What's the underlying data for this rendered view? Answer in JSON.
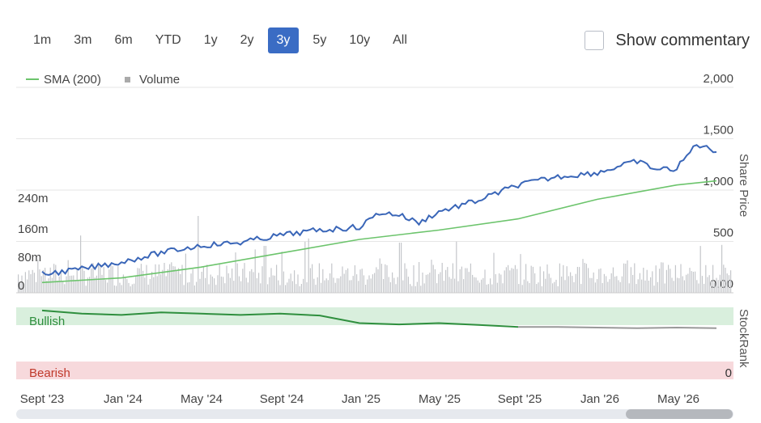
{
  "range_buttons": [
    "1m",
    "3m",
    "6m",
    "YTD",
    "1y",
    "2y",
    "3y",
    "5y",
    "10y",
    "All"
  ],
  "active_range": "3y",
  "commentary": {
    "label": "Show commentary",
    "checked": false
  },
  "legend": {
    "sma_label": "SMA (200)",
    "volume_label": "Volume"
  },
  "colors": {
    "price": "#3a66b8",
    "sma": "#6cc46c",
    "volume": "#c4c6ca",
    "bullish_line": "#2f8f3e",
    "neutral_line": "#999999",
    "bullish_band": "#d9efdd",
    "bearish_band": "#f7d9dc",
    "bearish_text": "#c0392b",
    "active_button": "#3a6cc4"
  },
  "chart_data": {
    "type": "line",
    "x_axis": {
      "ticks": [
        "Sept '23",
        "Jan '24",
        "May '24",
        "Sept '24",
        "Jan '25",
        "May '25",
        "Sept '25",
        "Jan '26",
        "May '26"
      ]
    },
    "price_axis": {
      "label": "Share Price",
      "ticks": [
        "2,000",
        "1,500",
        "1,000",
        "500",
        "0.00"
      ],
      "ylim": [
        0,
        2000
      ]
    },
    "volume_axis": {
      "ticks": [
        "240m",
        "160m",
        "80m",
        "0"
      ],
      "ylim": [
        0,
        360
      ]
    },
    "series": [
      {
        "name": "SMA (200)",
        "x": [
          "Sept '23",
          "Jan '24",
          "May '24",
          "Sept '24",
          "Jan '25",
          "May '25",
          "Sept '25",
          "Jan '26",
          "May '26",
          "Jul '26"
        ],
        "values": [
          100,
          145,
          250,
          385,
          520,
          610,
          720,
          910,
          1050,
          1090
        ]
      },
      {
        "name": "Share Price",
        "x": [
          "Sept '23",
          "Nov '23",
          "Jan '24",
          "Mar '24",
          "May '24",
          "Jul '24",
          "Sept '24",
          "Nov '24",
          "Jan '25",
          "Feb '25",
          "Mar '25",
          "Apr '25",
          "May '25",
          "Jul '25",
          "Sept '25",
          "Nov '25",
          "Jan '26",
          "Mar '26",
          "Apr '26",
          "May '26",
          "Jun '26",
          "Jul '26"
        ],
        "values": [
          180,
          230,
          300,
          390,
          460,
          490,
          560,
          610,
          640,
          780,
          760,
          680,
          790,
          900,
          1050,
          1130,
          1170,
          1280,
          1200,
          1210,
          1450,
          1370
        ]
      }
    ],
    "stockrank": {
      "label": "StockRank",
      "bullish_label": "Bullish",
      "bearish_label": "Bearish",
      "bearish_value": "0",
      "x": [
        "Sept '23",
        "Nov '23",
        "Jan '24",
        "Mar '24",
        "May '24",
        "Jul '24",
        "Sept '24",
        "Nov '24",
        "Jan '25",
        "Mar '25",
        "May '25",
        "Jul '25",
        "Sept '25",
        "Nov '25",
        "Jan '26",
        "Mar '26",
        "May '26",
        "Jul '26"
      ],
      "values": [
        95,
        90,
        88,
        92,
        90,
        88,
        90,
        87,
        75,
        73,
        75,
        72,
        69,
        69,
        68,
        67,
        68,
        67
      ],
      "bullish_until": "Sept '25"
    },
    "grid": true,
    "legend_position": "top-left"
  }
}
